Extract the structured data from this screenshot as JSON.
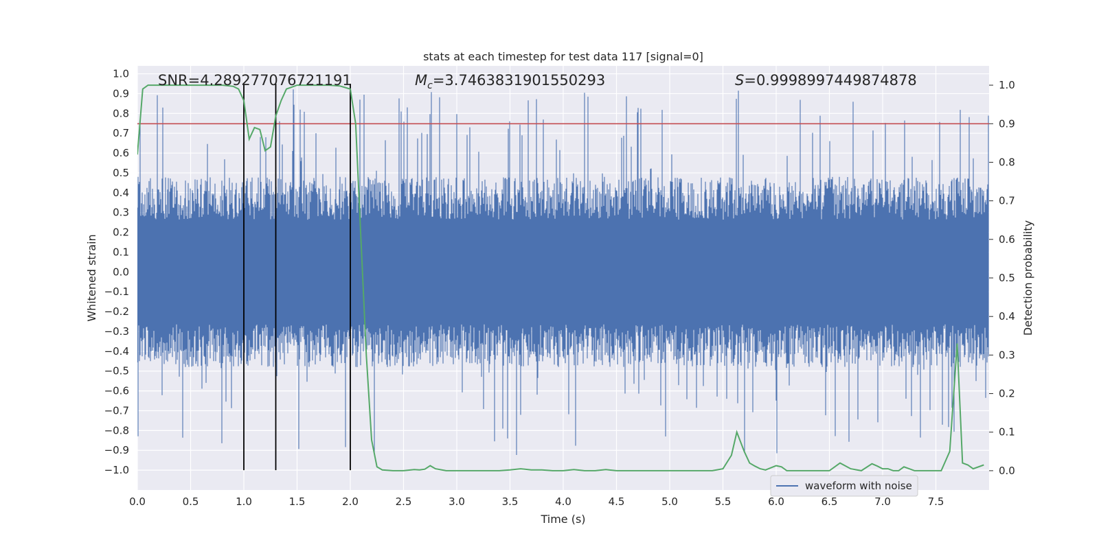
{
  "chart_data": {
    "type": "line",
    "title": "stats at each timestep for test data 117 [signal=0]",
    "xlabel": "Time (s)",
    "ylabel": "Whitened strain",
    "y2label": "Detection probability",
    "xlim": [
      0,
      8
    ],
    "ylim": [
      -1.1,
      1.04
    ],
    "y2lim": [
      -0.05,
      1.05
    ],
    "xticks": [
      "0.0",
      "0.5",
      "1.0",
      "1.5",
      "2.0",
      "2.5",
      "3.0",
      "3.5",
      "4.0",
      "4.5",
      "5.0",
      "5.5",
      "6.0",
      "6.5",
      "7.0",
      "7.5"
    ],
    "yticks": [
      "1.0",
      "0.9",
      "0.8",
      "0.7",
      "0.6",
      "0.5",
      "0.4",
      "0.3",
      "0.2",
      "0.1",
      "0.0",
      "−0.1",
      "−0.2",
      "−0.3",
      "−0.4",
      "−0.5",
      "−0.6",
      "−0.7",
      "−0.8",
      "−0.9",
      "−1.0"
    ],
    "y2ticks": [
      "1.0",
      "0.9",
      "0.8",
      "0.7",
      "0.6",
      "0.5",
      "0.4",
      "0.3",
      "0.2",
      "0.1",
      "0.0"
    ],
    "annotations": {
      "snr": "SNR=4.289277076721191",
      "mc": "=3.7463831901550293",
      "s": "=0.9998997449874878"
    },
    "legend": {
      "label": "waveform with noise",
      "placement": "lower-right"
    },
    "threshold": {
      "value": 0.9,
      "color": "#c44e52"
    },
    "vlines": [
      1.0,
      1.3,
      2.0
    ],
    "colors": {
      "waveform": "#4c72b0",
      "probability": "#55a868",
      "axes_bg": "#eaeaf2",
      "grid": "#ffffff"
    },
    "waveform": {
      "name": "waveform with noise",
      "typical_envelope": 0.48,
      "min": -1.0,
      "max": 0.95
    },
    "series": [
      {
        "name": "Detection probability",
        "x": [
          0.0,
          0.05,
          0.1,
          0.2,
          0.3,
          0.4,
          0.5,
          0.6,
          0.7,
          0.8,
          0.9,
          0.95,
          1.0,
          1.05,
          1.1,
          1.15,
          1.2,
          1.25,
          1.3,
          1.35,
          1.4,
          1.45,
          1.5,
          1.6,
          1.7,
          1.8,
          1.9,
          2.0,
          2.05,
          2.1,
          2.15,
          2.2,
          2.25,
          2.3,
          2.4,
          2.5,
          2.6,
          2.65,
          2.7,
          2.75,
          2.8,
          2.9,
          3.0,
          3.2,
          3.4,
          3.5,
          3.6,
          3.7,
          3.8,
          3.9,
          4.0,
          4.1,
          4.2,
          4.3,
          4.4,
          4.5,
          4.6,
          4.7,
          4.8,
          5.0,
          5.2,
          5.4,
          5.5,
          5.58,
          5.63,
          5.7,
          5.75,
          5.8,
          5.85,
          5.9,
          6.0,
          6.05,
          6.1,
          6.15,
          6.2,
          6.3,
          6.4,
          6.5,
          6.6,
          6.7,
          6.8,
          6.9,
          6.95,
          7.0,
          7.05,
          7.1,
          7.15,
          7.2,
          7.3,
          7.4,
          7.55,
          7.63,
          7.7,
          7.75,
          7.8,
          7.85,
          7.95
        ],
        "values": [
          0.82,
          0.99,
          1.0,
          1.0,
          1.0,
          1.0,
          1.0,
          1.0,
          1.0,
          1.0,
          0.997,
          0.99,
          0.96,
          0.86,
          0.89,
          0.885,
          0.83,
          0.84,
          0.92,
          0.96,
          0.99,
          0.995,
          1.0,
          1.0,
          1.0,
          1.0,
          0.998,
          0.99,
          0.9,
          0.6,
          0.3,
          0.08,
          0.01,
          0.002,
          0.0,
          0.0,
          0.003,
          0.002,
          0.004,
          0.013,
          0.005,
          0.0,
          0.0,
          0.0,
          0.0,
          0.002,
          0.005,
          0.002,
          0.002,
          0.0,
          0.0,
          0.003,
          0.0,
          0.0,
          0.003,
          0.0,
          0.0,
          0.0,
          0.0,
          0.0,
          0.0,
          0.0,
          0.005,
          0.04,
          0.1,
          0.05,
          0.02,
          0.012,
          0.005,
          0.002,
          0.013,
          0.01,
          0.0,
          0.0,
          0.0,
          0.0,
          0.0,
          0.0,
          0.02,
          0.005,
          0.0,
          0.018,
          0.012,
          0.005,
          0.005,
          0.0,
          0.0,
          0.01,
          0.0,
          0.0,
          0.0,
          0.05,
          0.33,
          0.02,
          0.015,
          0.005,
          0.015
        ]
      }
    ]
  }
}
